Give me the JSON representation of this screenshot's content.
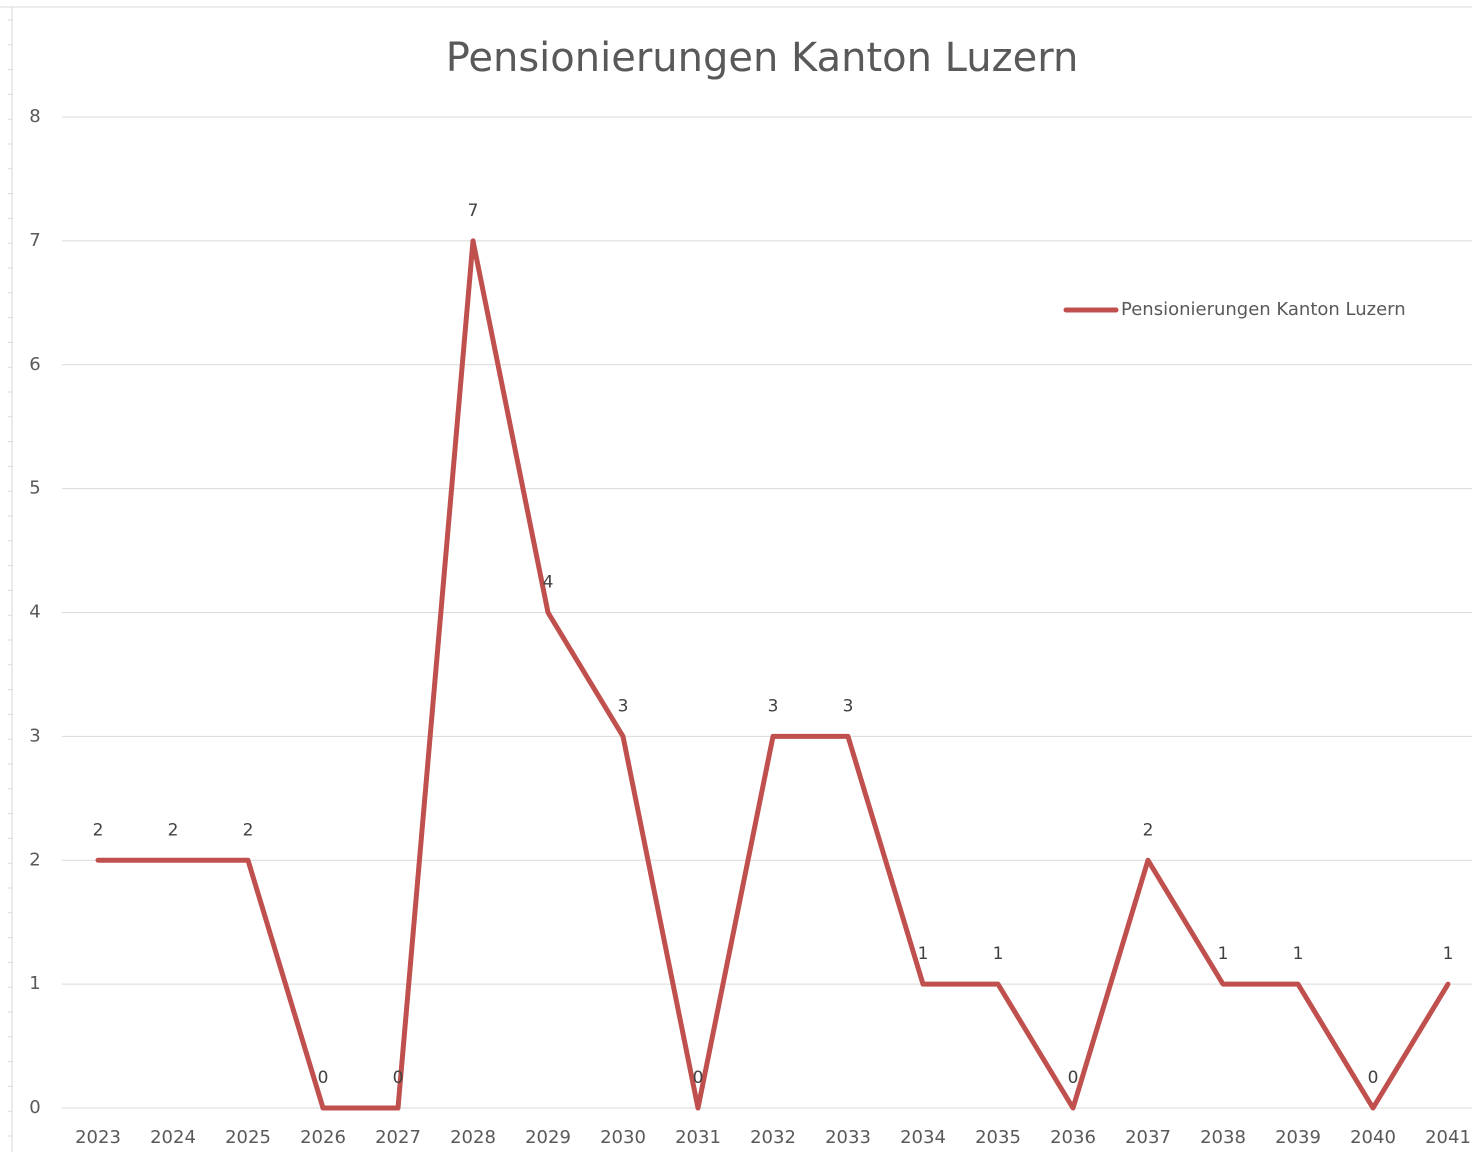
{
  "chart_data": {
    "type": "line",
    "title": "Pensionierungen Kanton Luzern",
    "categories": [
      "2023",
      "2024",
      "2025",
      "2026",
      "2027",
      "2028",
      "2029",
      "2030",
      "2031",
      "2032",
      "2033",
      "2034",
      "2035",
      "2036",
      "2037",
      "2038",
      "2039",
      "2040",
      "2041"
    ],
    "series": [
      {
        "name": "Pensionierungen Kanton Luzern",
        "color": "#c0504d",
        "values": [
          2,
          2,
          2,
          0,
          0,
          7,
          4,
          3,
          0,
          3,
          3,
          1,
          1,
          0,
          2,
          1,
          1,
          0,
          1
        ]
      }
    ],
    "ylim": [
      0,
      8
    ],
    "yticks": [
      0,
      1,
      2,
      3,
      4,
      5,
      6,
      7,
      8
    ],
    "grid": true,
    "legend": "right",
    "data_labels": true
  }
}
